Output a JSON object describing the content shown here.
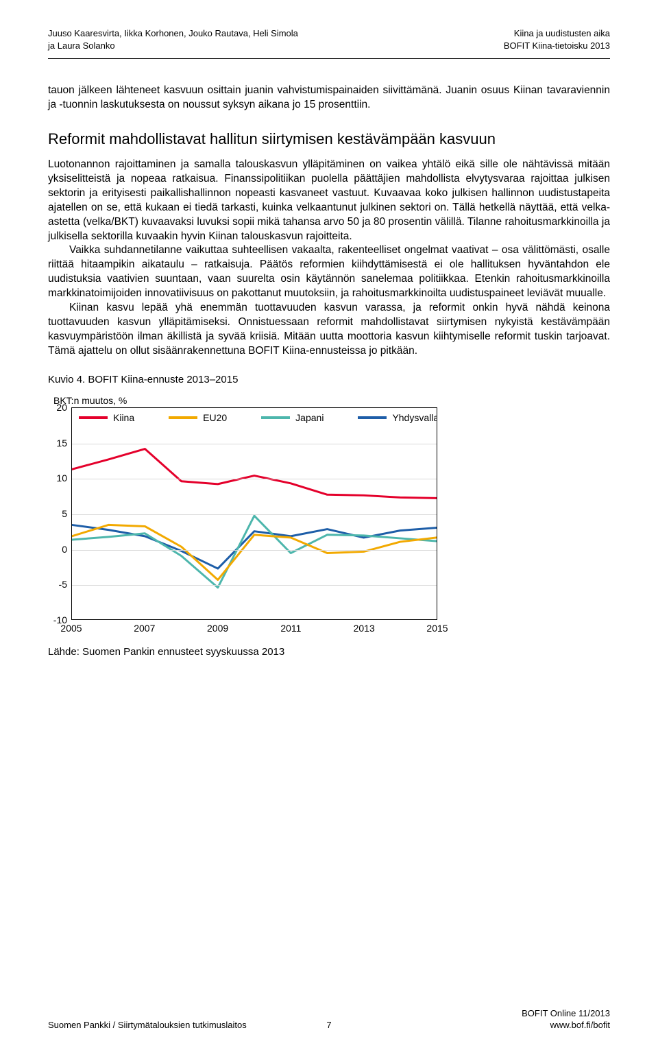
{
  "header": {
    "authors_line1": "Juuso Kaaresvirta, Iikka Korhonen, Jouko Rautava, Heli Simola",
    "authors_line2": "ja Laura Solanko",
    "doc_title_line1": "Kiina ja uudistusten aika",
    "doc_title_line2": "BOFIT Kiina-tietoisku 2013"
  },
  "lead_para": "tauon jälkeen lähteneet kasvuun osittain juanin vahvistumispainaiden siivittämänä. Juanin osuus Kiinan tavaraviennin ja -tuonnin laskutuksesta on noussut syksyn aikana jo 15 prosenttiin.",
  "section_heading": "Reformit mahdollistavat hallitun siirtymisen kestävämpään kasvuun",
  "para1": "Luotonannon rajoittaminen ja samalla talouskasvun ylläpitäminen on vaikea yhtälö eikä sille ole nähtävissä mitään yksiselitteistä ja nopeaa ratkaisua. Finanssipolitiikan puolella päättäjien mahdollista elvytysvaraa rajoittaa julkisen sektorin ja erityisesti paikallishallinnon nopeasti kasvaneet vastuut. Kuvaavaa koko julkisen hallinnon uudistustapeita ajatellen on se, että kukaan ei tiedä tarkasti, kuinka velkaantunut julkinen sektori on. Tällä hetkellä näyttää, että velka-astetta (velka/BKT) kuvaavaksi luvuksi sopii mikä tahansa arvo 50 ja 80 prosentin välillä. Tilanne rahoitusmarkkinoilla ja julkisella sektorilla kuvaakin hyvin Kiinan talouskasvun rajoitteita.",
  "para2": "Vaikka suhdannetilanne vaikuttaa suhteellisen vakaalta, rakenteelliset ongelmat vaativat – osa välittömästi, osalle riittää hitaampikin aikataulu – ratkaisuja. Päätös reformien kiihdyttämisestä ei ole hallituksen hyväntahdon ele uudistuksia vaativien suuntaan, vaan suurelta osin käytännön sanelemaa politiikkaa. Etenkin rahoitusmarkkinoilla markkinatoimijoiden innovatiivisuus on pakottanut muutoksiin, ja rahoitusmarkkinoilta uudistuspaineet leviävät muualle.",
  "para3": "Kiinan kasvu lepää yhä enemmän tuottavuuden kasvun varassa, ja reformit onkin hyvä nähdä keinona tuottavuuden kasvun ylläpitämiseksi. Onnistuessaan reformit mahdollistavat siirtymisen nykyistä kestävämpään kasvuympäristöön ilman äkillistä ja syvää kriisiä. Mitään uutta moottoria kasvun kiihtymiselle reformit tuskin tarjoavat. Tämä ajattelu on ollut sisäänrakennettuna BOFIT Kiina-ennusteissa jo pitkään.",
  "chart": {
    "title": "Kuvio 4. BOFIT Kiina-ennuste 2013–2015",
    "yaxis_title": "BKT:n muutos, %",
    "ylim": [
      -10,
      20
    ],
    "ytick_step": 5,
    "yticks": [
      20,
      15,
      10,
      5,
      0,
      -5,
      -10
    ],
    "xticks": [
      2005,
      2007,
      2009,
      2011,
      2013,
      2015
    ],
    "xlim": [
      2005,
      2015
    ],
    "grid_color": "#d9d9d9",
    "line_width": 3,
    "background_color": "#ffffff",
    "legend": [
      {
        "label": "Kiina",
        "color": "#e4002b"
      },
      {
        "label": "EU20",
        "color": "#f2a900"
      },
      {
        "label": "Japani",
        "color": "#4db6ac"
      },
      {
        "label": "Yhdysvallat",
        "color": "#1e5ea8"
      }
    ],
    "series": {
      "kiina": {
        "color": "#e4002b",
        "x": [
          2005,
          2006,
          2007,
          2008,
          2009,
          2010,
          2011,
          2012,
          2013,
          2014,
          2015
        ],
        "y": [
          11.3,
          12.7,
          14.2,
          9.6,
          9.2,
          10.4,
          9.3,
          7.7,
          7.6,
          7.3,
          7.2
        ]
      },
      "eu20": {
        "color": "#f2a900",
        "x": [
          2005,
          2006,
          2007,
          2008,
          2009,
          2010,
          2011,
          2012,
          2013,
          2014,
          2015
        ],
        "y": [
          1.8,
          3.4,
          3.2,
          0.3,
          -4.4,
          2.0,
          1.6,
          -0.6,
          -0.4,
          1.0,
          1.6
        ]
      },
      "japani": {
        "color": "#4db6ac",
        "x": [
          2005,
          2006,
          2007,
          2008,
          2009,
          2010,
          2011,
          2012,
          2013,
          2014,
          2015
        ],
        "y": [
          1.3,
          1.7,
          2.2,
          -1.0,
          -5.5,
          4.7,
          -0.6,
          2.0,
          1.9,
          1.5,
          1.1
        ]
      },
      "yhdysvallat": {
        "color": "#1e5ea8",
        "x": [
          2005,
          2006,
          2007,
          2008,
          2009,
          2010,
          2011,
          2012,
          2013,
          2014,
          2015
        ],
        "y": [
          3.4,
          2.7,
          1.8,
          -0.3,
          -2.8,
          2.5,
          1.8,
          2.8,
          1.6,
          2.6,
          3.0
        ]
      }
    },
    "source": "Lähde: Suomen Pankin ennusteet syyskuussa 2013"
  },
  "footer": {
    "left": "Suomen Pankki / Siirtymätalouksien tutkimuslaitos",
    "page_number": "7",
    "right_line1": "BOFIT Online 11/2013",
    "right_line2": "www.bof.fi/bofit"
  }
}
